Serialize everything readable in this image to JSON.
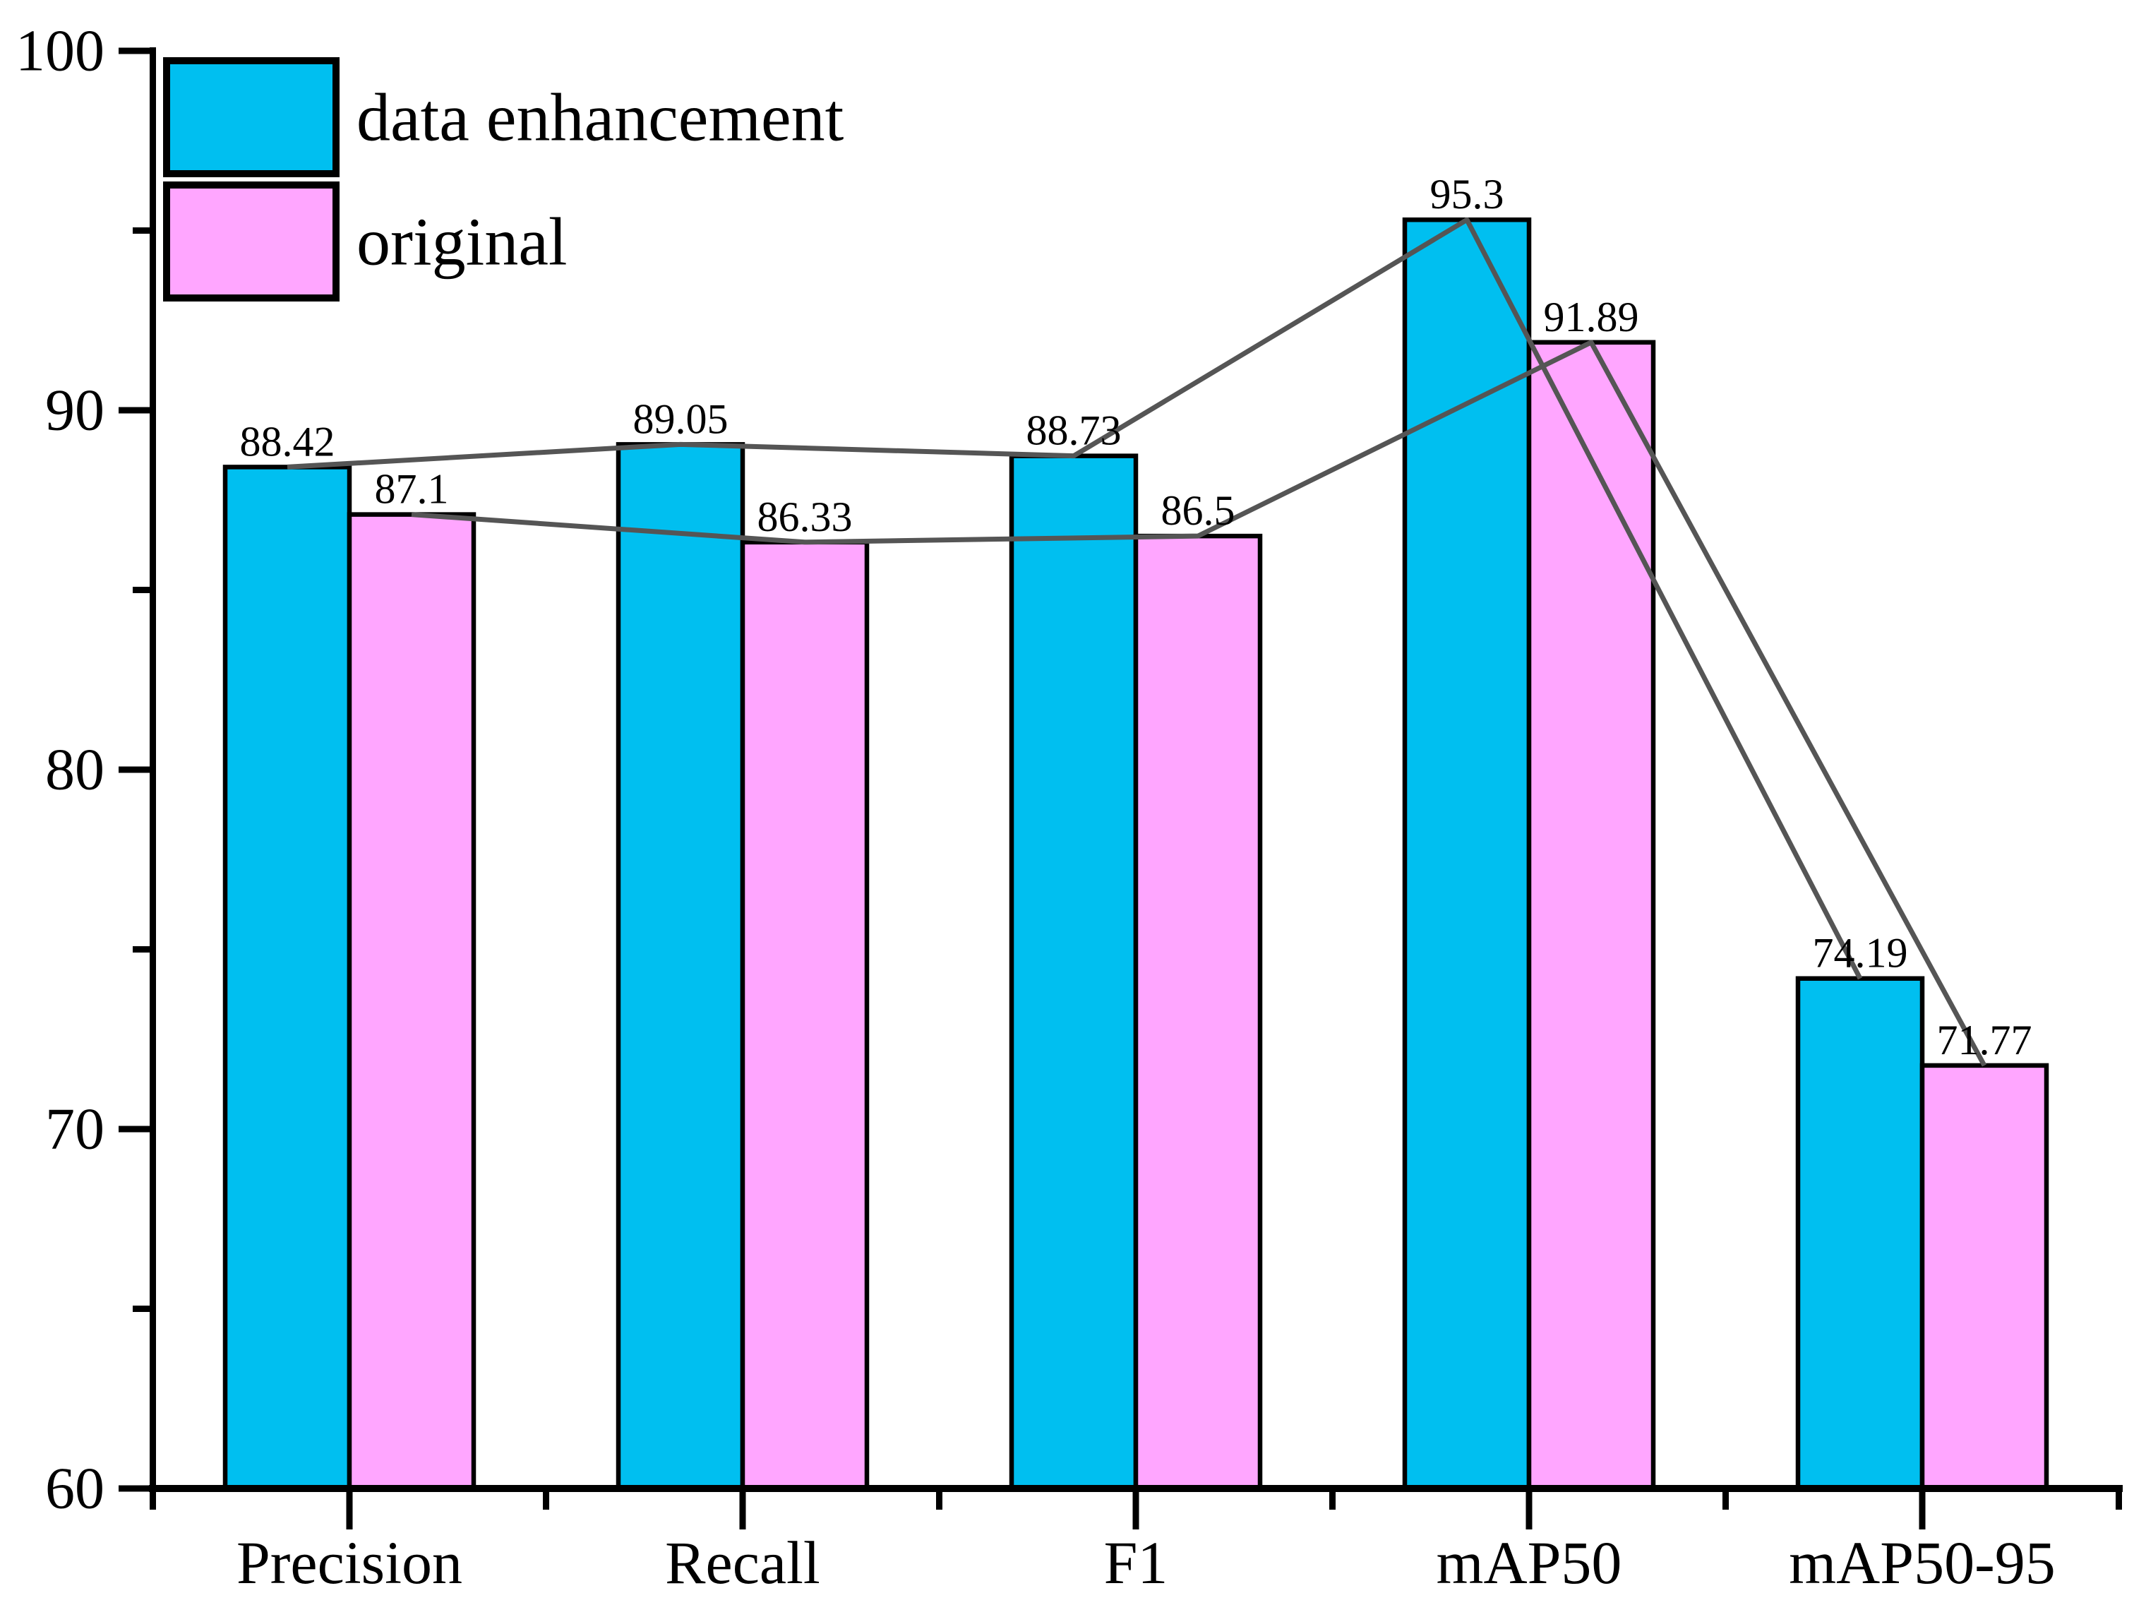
{
  "chart_data": {
    "type": "bar",
    "categories": [
      "Precision",
      "Recall",
      "F1",
      "mAP50",
      "mAP50-95"
    ],
    "series": [
      {
        "name": "data enhancement",
        "color": "#00bff0",
        "values": [
          88.42,
          89.05,
          88.73,
          95.3,
          74.19
        ]
      },
      {
        "name": "original",
        "color": "#ffa6ff",
        "values": [
          87.1,
          86.33,
          86.5,
          91.89,
          71.77
        ]
      }
    ],
    "value_labels": [
      [
        "88.42",
        "89.05",
        "88.73",
        "95.3",
        "74.19"
      ],
      [
        "87.1",
        "86.33",
        "86.5",
        "91.89",
        "71.77"
      ]
    ],
    "title": "",
    "xlabel": "",
    "ylabel": "",
    "ylim": [
      60,
      100
    ],
    "y_major_ticks": [
      60,
      70,
      80,
      90,
      100
    ],
    "y_minor_ticks": [
      65,
      75,
      85,
      95
    ],
    "grid": false,
    "legend_position": "top-left",
    "connector_lines": true,
    "connector_line_color": "#555555",
    "bar_edge_color": "#000000",
    "axis_color": "#000000",
    "background_color": "#ffffff"
  },
  "legend": {
    "items": [
      {
        "label": "data enhancement"
      },
      {
        "label": "original"
      }
    ]
  }
}
